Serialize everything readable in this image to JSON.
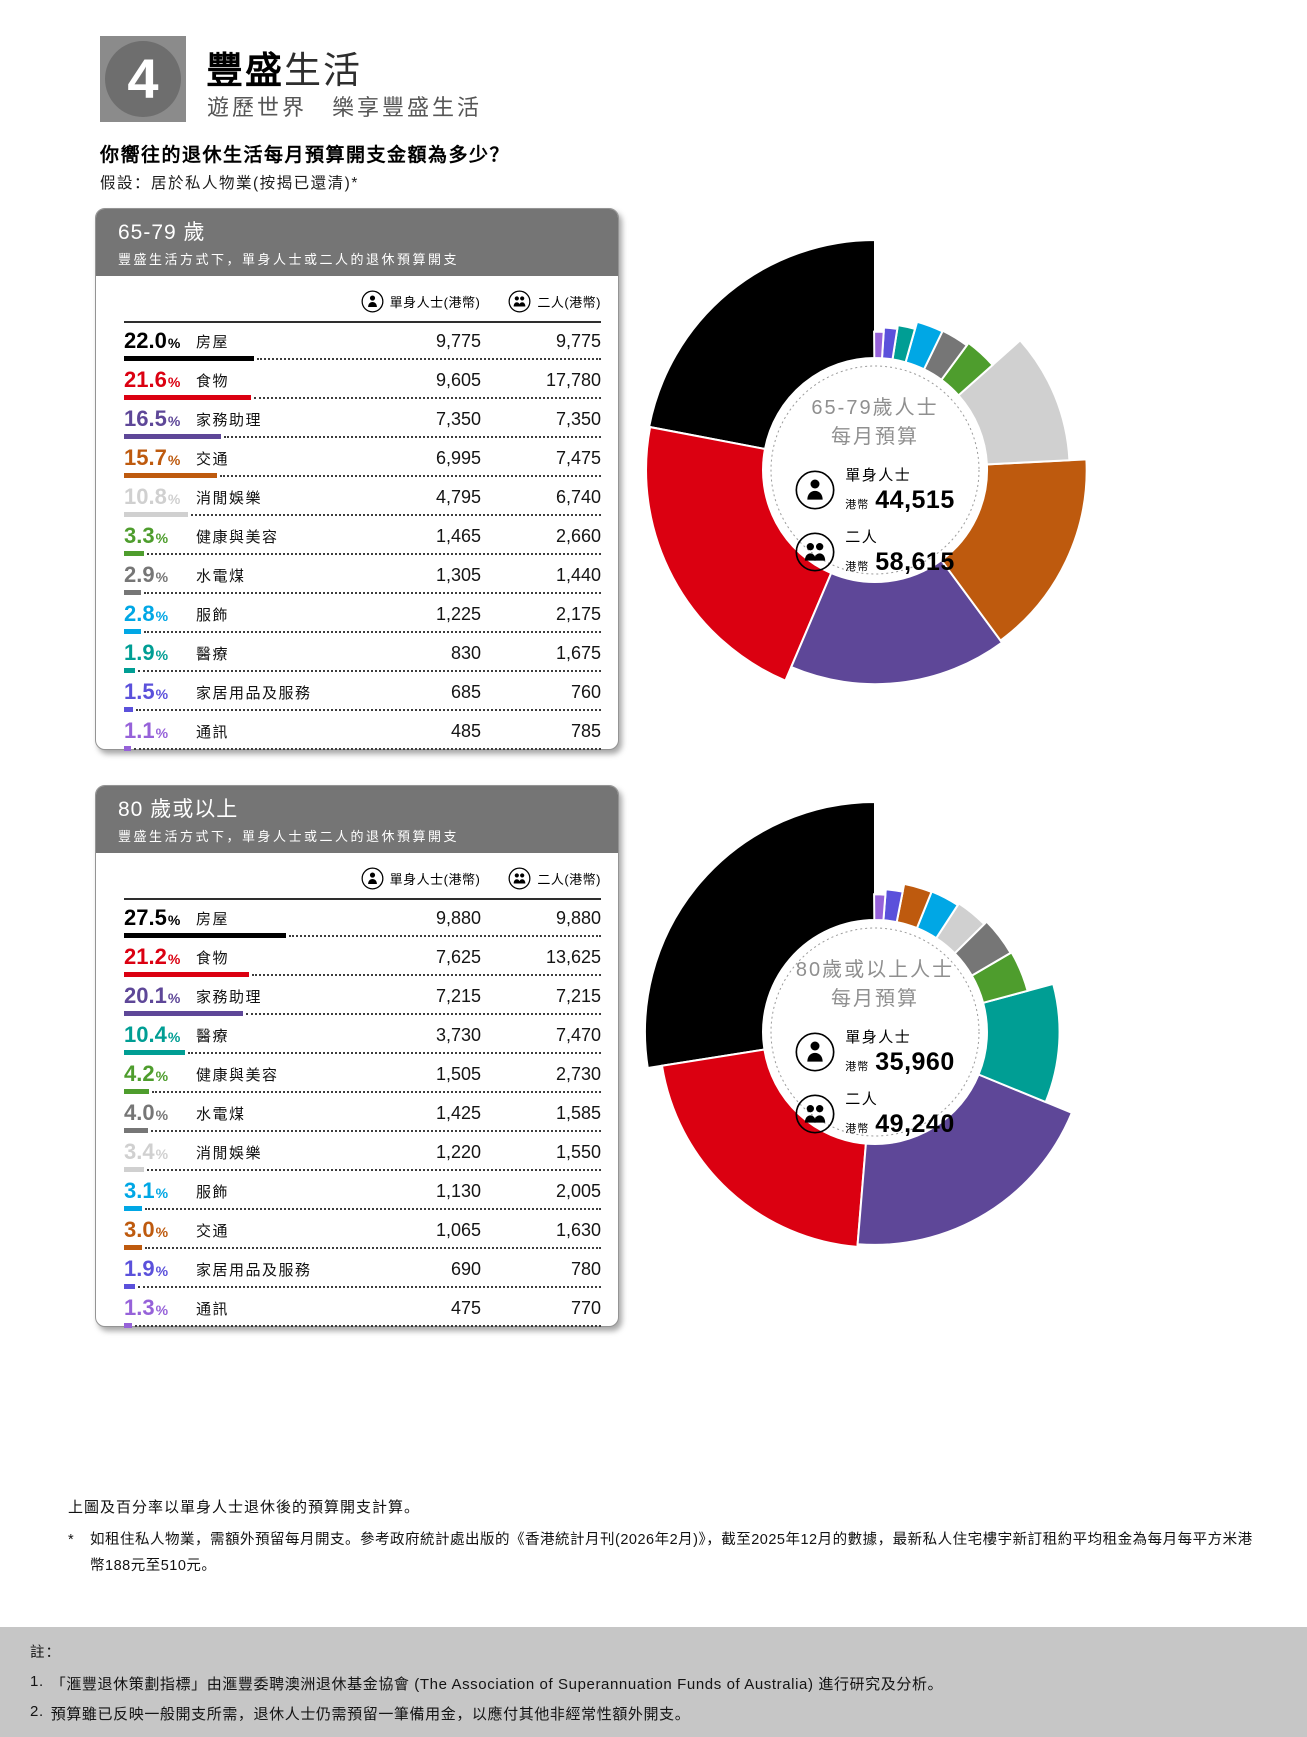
{
  "header": {
    "badge_number": "4",
    "title_strong": "豐盛",
    "title_light": "生活",
    "subtitle": "遊歷世界　樂享豐盛生活"
  },
  "intro": {
    "question": "你嚮往的退休生活每月預算開支金額為多少？",
    "assumption": "假設：居於私人物業(按揭已還清)*"
  },
  "legend": {
    "single": "單身人士(港幣)",
    "couple": "二人(港幣)"
  },
  "panels": [
    {
      "age_title": "65-79 歲",
      "age_subtitle": "豐盛生活方式下，單身人士或二人的退休預算開支",
      "rows": [
        {
          "pct": "22.0",
          "pct_value": 22.0,
          "label": "房屋",
          "single": "9,775",
          "couple": "9,775",
          "color": "#000000"
        },
        {
          "pct": "21.6",
          "pct_value": 21.6,
          "label": "食物",
          "single": "9,605",
          "couple": "17,780",
          "color": "#DB0011"
        },
        {
          "pct": "16.5",
          "pct_value": 16.5,
          "label": "家務助理",
          "single": "7,350",
          "couple": "7,350",
          "color": "#5E4798"
        },
        {
          "pct": "15.7",
          "pct_value": 15.7,
          "label": "交通",
          "single": "6,995",
          "couple": "7,475",
          "color": "#BE5A0E"
        },
        {
          "pct": "10.8",
          "pct_value": 10.8,
          "label": "消閒娛樂",
          "single": "4,795",
          "couple": "6,740",
          "color": "#D0D0D0"
        },
        {
          "pct": "3.3",
          "pct_value": 3.3,
          "label": "健康與美容",
          "single": "1,465",
          "couple": "2,660",
          "color": "#4E9D2D"
        },
        {
          "pct": "2.9",
          "pct_value": 2.9,
          "label": "水電煤",
          "single": "1,305",
          "couple": "1,440",
          "color": "#767676"
        },
        {
          "pct": "2.8",
          "pct_value": 2.8,
          "label": "服飾",
          "single": "1,225",
          "couple": "2,175",
          "color": "#00A7E5"
        },
        {
          "pct": "1.9",
          "pct_value": 1.9,
          "label": "醫療",
          "single": "830",
          "couple": "1,675",
          "color": "#009E94"
        },
        {
          "pct": "1.5",
          "pct_value": 1.5,
          "label": "家居用品及服務",
          "single": "685",
          "couple": "760",
          "color": "#5B51DB"
        },
        {
          "pct": "1.1",
          "pct_value": 1.1,
          "label": "通訊",
          "single": "485",
          "couple": "785",
          "color": "#9662D9"
        }
      ],
      "center": {
        "title1": "65-79歲人士",
        "title2": "每月預算",
        "single_label": "單身人士",
        "couple_label": "二人",
        "currency": "港幣",
        "single_total": "44,515",
        "couple_total": "58,615"
      }
    },
    {
      "age_title": "80 歲或以上",
      "age_subtitle": "豐盛生活方式下，單身人士或二人的退休預算開支",
      "rows": [
        {
          "pct": "27.5",
          "pct_value": 27.5,
          "label": "房屋",
          "single": "9,880",
          "couple": "9,880",
          "color": "#000000"
        },
        {
          "pct": "21.2",
          "pct_value": 21.2,
          "label": "食物",
          "single": "7,625",
          "couple": "13,625",
          "color": "#DB0011"
        },
        {
          "pct": "20.1",
          "pct_value": 20.1,
          "label": "家務助理",
          "single": "7,215",
          "couple": "7,215",
          "color": "#5E4798"
        },
        {
          "pct": "10.4",
          "pct_value": 10.4,
          "label": "醫療",
          "single": "3,730",
          "couple": "7,470",
          "color": "#009E94"
        },
        {
          "pct": "4.2",
          "pct_value": 4.2,
          "label": "健康與美容",
          "single": "1,505",
          "couple": "2,730",
          "color": "#4E9D2D"
        },
        {
          "pct": "4.0",
          "pct_value": 4.0,
          "label": "水電煤",
          "single": "1,425",
          "couple": "1,585",
          "color": "#767676"
        },
        {
          "pct": "3.4",
          "pct_value": 3.4,
          "label": "消閒娛樂",
          "single": "1,220",
          "couple": "1,550",
          "color": "#D0D0D0"
        },
        {
          "pct": "3.1",
          "pct_value": 3.1,
          "label": "服飾",
          "single": "1,130",
          "couple": "2,005",
          "color": "#00A7E5"
        },
        {
          "pct": "3.0",
          "pct_value": 3.0,
          "label": "交通",
          "single": "1,065",
          "couple": "1,630",
          "color": "#BE5A0E"
        },
        {
          "pct": "1.9",
          "pct_value": 1.9,
          "label": "家居用品及服務",
          "single": "690",
          "couple": "780",
          "color": "#5B51DB"
        },
        {
          "pct": "1.3",
          "pct_value": 1.3,
          "label": "通訊",
          "single": "475",
          "couple": "770",
          "color": "#9662D9"
        }
      ],
      "center": {
        "title1": "80歲或以上人士",
        "title2": "每月預算",
        "single_label": "單身人士",
        "couple_label": "二人",
        "currency": "港幣",
        "single_total": "35,960",
        "couple_total": "49,240"
      }
    }
  ],
  "chart_data": [
    {
      "type": "donut",
      "title": "65-79歲人士每月預算",
      "start": "top",
      "direction": "counterclockwise",
      "categories": [
        "房屋",
        "食物",
        "家務助理",
        "交通",
        "消閒娛樂",
        "健康與美容",
        "水電煤",
        "服飾",
        "醫療",
        "家居用品及服務",
        "通訊"
      ],
      "values": [
        22.0,
        21.6,
        16.5,
        15.7,
        10.8,
        3.3,
        2.9,
        2.8,
        1.9,
        1.5,
        1.1
      ],
      "colors": [
        "#000000",
        "#DB0011",
        "#5E4798",
        "#BE5A0E",
        "#D0D0D0",
        "#4E9D2D",
        "#767676",
        "#00A7E5",
        "#009E94",
        "#5B51DB",
        "#9662D9"
      ],
      "single_hkd": [
        9775,
        9605,
        7350,
        6995,
        4795,
        1465,
        1305,
        1225,
        830,
        685,
        485
      ],
      "couple_hkd": [
        9775,
        17780,
        7350,
        7475,
        6740,
        2660,
        1440,
        2175,
        1675,
        760,
        785
      ],
      "total_single_hkd": 44515,
      "total_couple_hkd": 58615
    },
    {
      "type": "donut",
      "title": "80歲或以上人士每月預算",
      "start": "top",
      "direction": "counterclockwise",
      "categories": [
        "房屋",
        "食物",
        "家務助理",
        "醫療",
        "健康與美容",
        "水電煤",
        "消閒娛樂",
        "服飾",
        "交通",
        "家居用品及服務",
        "通訊"
      ],
      "values": [
        27.5,
        21.2,
        20.1,
        10.4,
        4.2,
        4.0,
        3.4,
        3.1,
        3.0,
        1.9,
        1.3
      ],
      "colors": [
        "#000000",
        "#DB0011",
        "#5E4798",
        "#009E94",
        "#4E9D2D",
        "#767676",
        "#D0D0D0",
        "#00A7E5",
        "#BE5A0E",
        "#5B51DB",
        "#9662D9"
      ],
      "single_hkd": [
        9880,
        7625,
        7215,
        3730,
        1505,
        1425,
        1220,
        1130,
        1065,
        690,
        475
      ],
      "couple_hkd": [
        9880,
        13625,
        7215,
        7470,
        2730,
        1585,
        1550,
        2005,
        1630,
        780,
        770
      ],
      "total_single_hkd": 35960,
      "total_couple_hkd": 49240
    }
  ],
  "footnotes": {
    "calc_note": "上圖及百分率以單身人士退休後的預算開支計算。",
    "asterisk_marker": "*",
    "asterisk_note": "如租住私人物業，需額外預留每月開支。參考政府統計處出版的《香港統計月刊(2026年2月)》，截至2025年12月的數據，最新私人住宅樓宇新訂租約平均租金為每月每平方米港幣188元至510元。"
  },
  "notes_box": {
    "title": "註：",
    "items": [
      {
        "marker": "1.",
        "text": "「滙豐退休策劃指標」由滙豐委聘澳洲退休基金協會 (The Association of Superannuation Funds of Australia) 進行研究及分析。"
      },
      {
        "marker": "2.",
        "text": "預算雖已反映一般開支所需，退休人士仍需預留一筆備用金，以應付其他非經常性額外開支。"
      }
    ]
  }
}
